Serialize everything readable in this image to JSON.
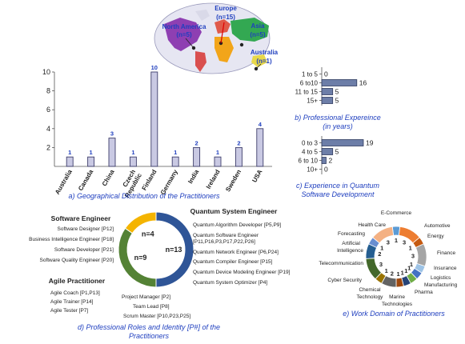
{
  "chart_data": [
    {
      "id": "geo-bars",
      "type": "bar",
      "title": "",
      "caption": "a) Geographical Distribution of the Practitioners",
      "categories": [
        "Australia",
        "Canada",
        "China",
        "Czech Republic",
        "Finland",
        "Germany",
        "India",
        "Ireland",
        "Sweden",
        "USA"
      ],
      "values": [
        1,
        1,
        3,
        1,
        10,
        1,
        2,
        1,
        2,
        4
      ],
      "ylim": [
        0,
        10
      ],
      "yticks": [
        "2",
        "4",
        "6",
        "8",
        "10"
      ],
      "xlabel": "",
      "ylabel": ""
    },
    {
      "id": "world-map",
      "type": "map",
      "regions": [
        {
          "name": "North America",
          "count": "(n=5)"
        },
        {
          "name": "Europe",
          "count": "(n=15)"
        },
        {
          "name": "Asia",
          "count": "(n=5)"
        },
        {
          "name": "Australia",
          "count": "(n=1)"
        }
      ]
    },
    {
      "id": "experience",
      "type": "bar",
      "orientation": "horizontal",
      "caption": "b) Professional Expereince",
      "caption2": "(in years)",
      "categories": [
        "1 to 5",
        "6 to10",
        "11 to 15",
        "15+"
      ],
      "values": [
        0,
        16,
        5,
        5
      ],
      "xlim": [
        0,
        19
      ]
    },
    {
      "id": "quantum-experience",
      "type": "bar",
      "orientation": "horizontal",
      "caption": "c) Experience in Quantum",
      "caption2": "Software Development",
      "categories": [
        "0 to 3",
        "4 to 5",
        "6 to 10",
        "10+"
      ],
      "values": [
        19,
        5,
        2,
        0
      ],
      "xlim": [
        0,
        19
      ]
    },
    {
      "id": "roles",
      "type": "pie",
      "caption": "d) Professional Roles and Identity [P#] of the",
      "caption2": "Practitioners",
      "slices": [
        {
          "name": "Quantum System Engineer",
          "value": 13,
          "label": "n=13",
          "color": "#2f5597"
        },
        {
          "name": "Agile Practitioner",
          "value": 9,
          "label": "n=9",
          "color": "#548235"
        },
        {
          "name": "Software Engineer",
          "value": 4,
          "label": "n=4",
          "color": "#f4b400"
        }
      ],
      "groups": {
        "quantum": [
          "Quantum Algorithm Developer [P5,P9]",
          "Quantum Software Engineer",
          "[P11,P16,P3,P17,P22,P26]",
          "Quantum Network Engineer [P6,P24]",
          "Quantum Compiler Engineer [P15]",
          "Quantum Device Modeling Engineer [P19]",
          "Quantum System Optimizer [P4]"
        ],
        "software": [
          "Software Designer [P12]",
          "Business Intelligence Engineer [P18]",
          "Software Developer [P21]",
          "Software Quality Engineer [P20]"
        ],
        "agile": [
          "Agile Coach [P1,P13]",
          "Agile Trainer [P14]",
          "Agile Tester [P7]"
        ],
        "other": [
          "Project Manager [P2]",
          "Team Lead [P8]",
          "Scrum Master [P10,P23,P25]"
        ]
      }
    },
    {
      "id": "domains",
      "type": "pie",
      "caption": "e) Work Domain of Practitioners",
      "slices": [
        {
          "name": "E-Commerce",
          "value": 1,
          "color": "#5b9bd5"
        },
        {
          "name": "Automotive",
          "value": 3,
          "color": "#ed7d31"
        },
        {
          "name": "Energy",
          "value": 1,
          "color": "#c55a11"
        },
        {
          "name": "Finance",
          "value": 3,
          "color": "#a5a5a5"
        },
        {
          "name": "Insurance",
          "value": 1,
          "color": "#9dc3e6"
        },
        {
          "name": "Logistics",
          "value": 1,
          "color": "#4472c4"
        },
        {
          "name": "Manufacturing",
          "value": 1,
          "color": "#70ad47"
        },
        {
          "name": "Pharma",
          "value": 1,
          "color": "#264478"
        },
        {
          "name": "Marine Technologies",
          "value": 1,
          "color": "#9e480e"
        },
        {
          "name": "Chemical Technology",
          "value": 2,
          "color": "#636363"
        },
        {
          "name": "Cyber Security",
          "value": 1,
          "color": "#997300"
        },
        {
          "name": "Telecommunication",
          "value": 3,
          "color": "#43682b"
        },
        {
          "name": "Artificial Intelligence",
          "value": 2,
          "color": "#255e91"
        },
        {
          "name": "Forecasting",
          "value": 1,
          "color": "#698ed0"
        },
        {
          "name": "Health Care",
          "value": 3,
          "color": "#f4b183"
        }
      ]
    }
  ],
  "texts": {
    "pieTitles": {
      "quantum": "Quantum System Engineer",
      "software": "Software Engineer",
      "agile": "Agile Practitioner"
    },
    "domainLabels": [
      "E-Commerce",
      "Automotive",
      "Energy",
      "Finance",
      "Insurance",
      "Logistics",
      "Manufacturing",
      "Pharma",
      "Marine",
      "Technologies",
      "Chemical",
      "Technology",
      "Cyber Security",
      "Telecommunication",
      "Artificial",
      "Intelligence",
      "Forecasting",
      "Health Care"
    ]
  }
}
